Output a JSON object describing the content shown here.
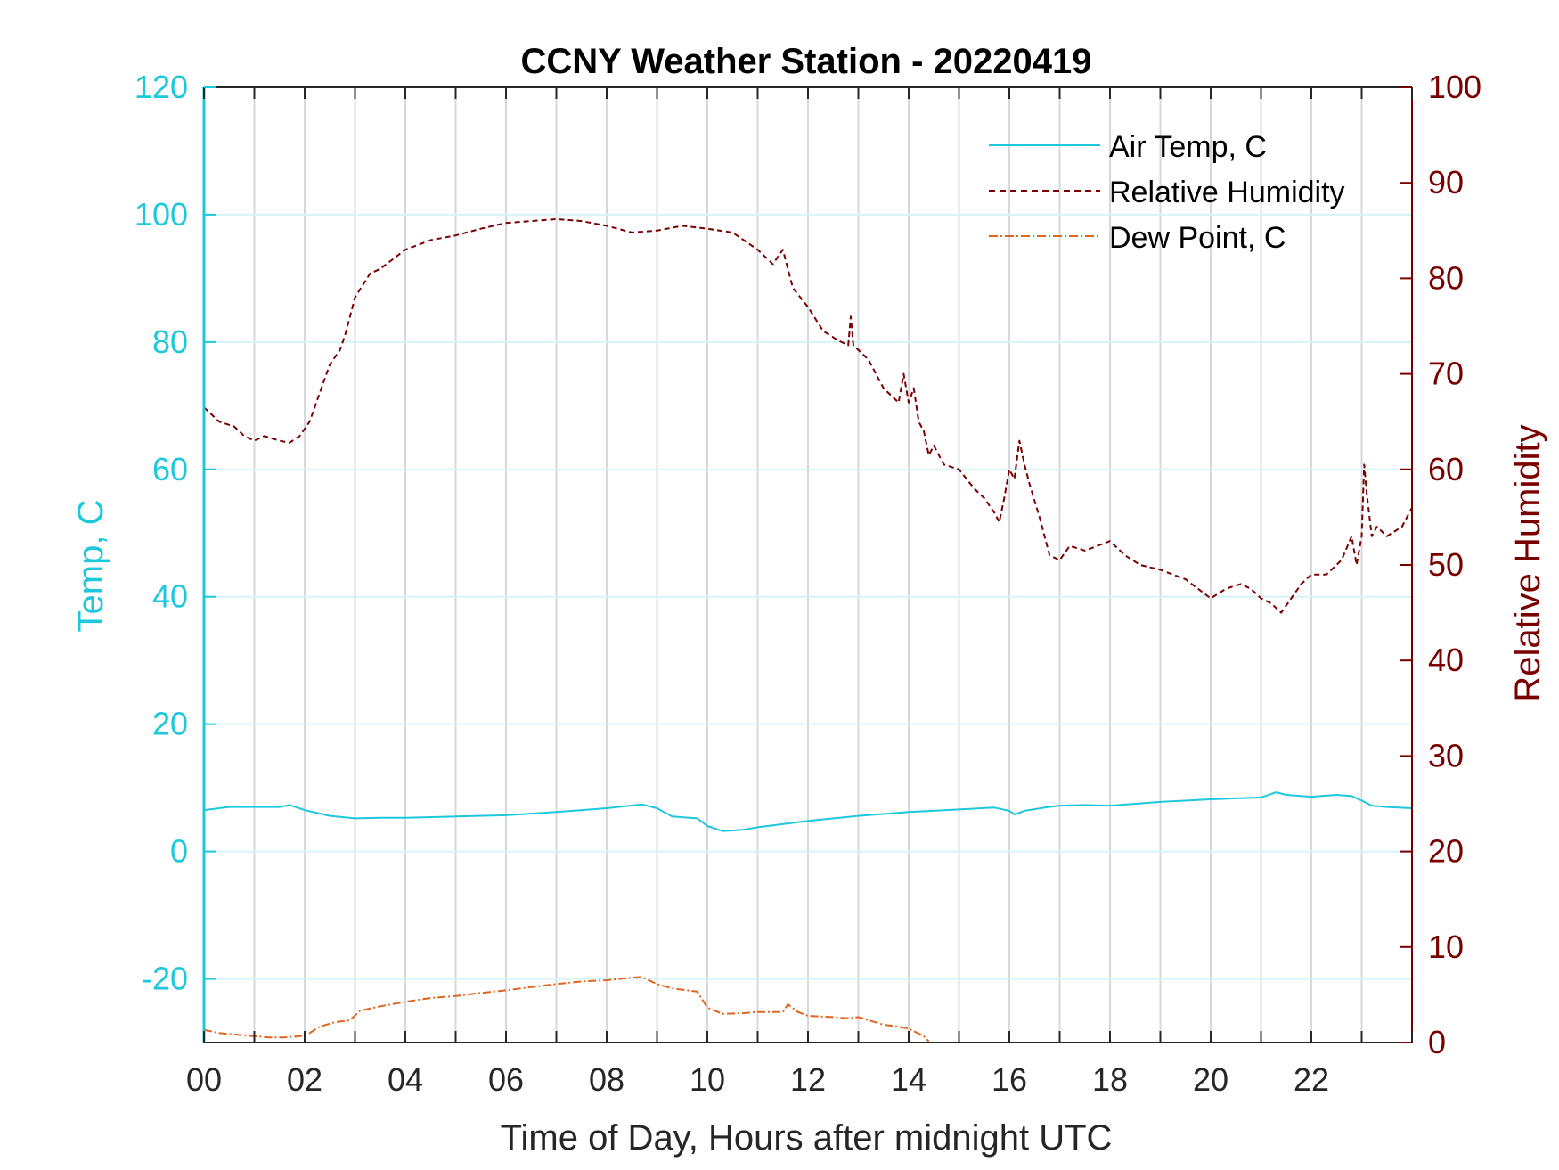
{
  "chart_data": {
    "type": "line",
    "title": "CCNY Weather Station - 20220419",
    "xlabel": "Time of Day, Hours after midnight UTC",
    "ylabel_left": "Temp, C",
    "ylabel_right": "Relative Humidity",
    "xlim": [
      0,
      24
    ],
    "ylim_left": [
      -30,
      120
    ],
    "ylim_right": [
      0,
      100
    ],
    "x_ticks": [
      0,
      2,
      4,
      6,
      8,
      10,
      12,
      14,
      16,
      18,
      20,
      22
    ],
    "x_tick_labels": [
      "00",
      "02",
      "04",
      "06",
      "08",
      "10",
      "12",
      "14",
      "16",
      "18",
      "20",
      "22"
    ],
    "y_left_ticks": [
      -20,
      0,
      20,
      40,
      60,
      80,
      100,
      120
    ],
    "y_left_tick_labels": [
      "-20",
      "0",
      "20",
      "40",
      "60",
      "80",
      "100",
      "120"
    ],
    "y_right_ticks": [
      0,
      10,
      20,
      30,
      40,
      50,
      60,
      70,
      80,
      90,
      100
    ],
    "y_right_tick_labels": [
      "0",
      "10",
      "20",
      "30",
      "40",
      "50",
      "60",
      "70",
      "80",
      "90",
      "100"
    ],
    "grid": "vertical every hour, horizontal at left ticks",
    "legend_position": "top-right",
    "colors": {
      "air_temp": "#1ec8dc",
      "relative_humidity": "#7a0000",
      "dew_point": "#e0651e",
      "left_axis": "#1ec8dc",
      "right_axis": "#7a0000",
      "grid_vertical": "#d6d9dc",
      "grid_horizontal": "#d4f4f8"
    },
    "series": [
      {
        "name": "Air Temp, C",
        "axis": "left",
        "style": "solid",
        "x": [
          0,
          0.5,
          1,
          1.5,
          1.7,
          2,
          2.5,
          3,
          3.5,
          4,
          5,
          6,
          7,
          8,
          8.7,
          9,
          9.3,
          9.8,
          10,
          10.3,
          10.7,
          11,
          11.5,
          12,
          13,
          14,
          15,
          15.7,
          16,
          16.1,
          16.3,
          16.7,
          17,
          17.5,
          18,
          19,
          20,
          21,
          21.3,
          21.5,
          22,
          22.5,
          22.8,
          23,
          23.2,
          23.5,
          24
        ],
        "values": [
          6.5,
          7,
          7,
          7,
          7.3,
          6.5,
          5.6,
          5.2,
          5.3,
          5.3,
          5.5,
          5.7,
          6.2,
          6.8,
          7.4,
          6.8,
          5.5,
          5.2,
          4,
          3.2,
          3.4,
          3.8,
          4.3,
          4.8,
          5.6,
          6.2,
          6.6,
          6.9,
          6.4,
          5.8,
          6.4,
          6.9,
          7.2,
          7.3,
          7.2,
          7.8,
          8.2,
          8.5,
          9.3,
          8.9,
          8.6,
          8.9,
          8.7,
          8.0,
          7.2,
          7.0,
          6.8
        ]
      },
      {
        "name": "Relative Humidity",
        "axis": "right",
        "style": "dashed",
        "x": [
          0,
          0.3,
          0.6,
          0.8,
          1,
          1.2,
          1.5,
          1.7,
          1.9,
          2.1,
          2.3,
          2.5,
          2.7,
          2.8,
          3,
          3.3,
          3.5,
          4,
          4.5,
          5,
          5.5,
          6,
          6.5,
          7,
          7.5,
          8,
          8.5,
          9,
          9.5,
          10,
          10.5,
          11,
          11.3,
          11.5,
          11.7,
          12,
          12.3,
          12.6,
          12.8,
          12.85,
          12.9,
          13.2,
          13.5,
          13.8,
          13.9,
          14,
          14.1,
          14.2,
          14.3,
          14.4,
          14.5,
          14.7,
          15,
          15.3,
          15.5,
          15.7,
          15.8,
          15.9,
          16,
          16.1,
          16.2,
          16.3,
          16.4,
          16.6,
          16.8,
          17,
          17.2,
          17.5,
          18,
          18.3,
          18.6,
          19,
          19.5,
          20,
          20.3,
          20.6,
          20.8,
          21,
          21.2,
          21.4,
          21.6,
          21.8,
          22,
          22.3,
          22.6,
          22.8,
          22.9,
          23,
          23.05,
          23.1,
          23.2,
          23.3,
          23.5,
          23.8,
          24
        ],
        "values": [
          66.5,
          65,
          64.5,
          63.5,
          63,
          63.5,
          63,
          62.8,
          63.5,
          65,
          68,
          71,
          72.5,
          74,
          78,
          80.5,
          81,
          83,
          84,
          84.5,
          85.2,
          85.8,
          86,
          86.2,
          86,
          85.5,
          84.8,
          85,
          85.5,
          85.2,
          84.8,
          83,
          81.5,
          83,
          79,
          77,
          74.5,
          73.5,
          73,
          76,
          73,
          71.5,
          68.5,
          67,
          70,
          67,
          68.5,
          65,
          64,
          61.5,
          62.5,
          60.5,
          60,
          58,
          57,
          55.5,
          54.5,
          57,
          60,
          59,
          63,
          60.5,
          58.5,
          55,
          51,
          50.5,
          52,
          51.5,
          52.5,
          51,
          50,
          49.5,
          48.5,
          46.5,
          47.5,
          48,
          47.5,
          46.5,
          46,
          45,
          46.5,
          48,
          49,
          49,
          50.5,
          53,
          50,
          53,
          60.5,
          57.5,
          53,
          54,
          53,
          54,
          56
        ]
      },
      {
        "name": "Dew Point, C",
        "axis": "left",
        "style": "dash-dot",
        "x": [
          0,
          0.3,
          0.7,
          1,
          1.3,
          1.6,
          1.9,
          2.1,
          2.3,
          2.6,
          2.9,
          3.1,
          3.5,
          4,
          4.5,
          5,
          5.5,
          6,
          6.5,
          7,
          7.5,
          8,
          8.5,
          8.7,
          9,
          9.3,
          9.8,
          10,
          10.3,
          10.7,
          11,
          11.5,
          11.6,
          11.8,
          12,
          12.5,
          12.8,
          13,
          13.5,
          13.8,
          14,
          14.1,
          14.3,
          14.4
        ],
        "values": [
          -28,
          -28.5,
          -28.8,
          -29,
          -29.2,
          -29.2,
          -29,
          -28.5,
          -27.5,
          -26.8,
          -26.5,
          -25,
          -24.3,
          -23.6,
          -23,
          -22.7,
          -22.2,
          -21.8,
          -21.3,
          -20.8,
          -20.4,
          -20.2,
          -19.8,
          -19.7,
          -20.8,
          -21.5,
          -22,
          -24.5,
          -25.5,
          -25.4,
          -25.2,
          -25.2,
          -24,
          -25.2,
          -25.8,
          -26,
          -26.2,
          -26,
          -27.2,
          -27.5,
          -27.8,
          -28.2,
          -29,
          -29.8
        ]
      }
    ]
  }
}
